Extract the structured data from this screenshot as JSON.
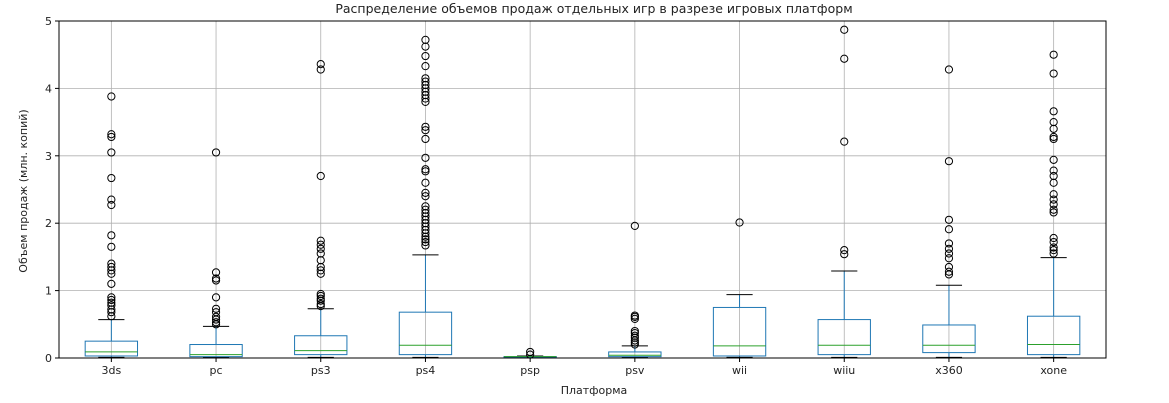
{
  "chart_data": {
    "type": "box",
    "title": "Распределение объемов продаж отдельных игр в разрезе игровых платформ",
    "xlabel": "Платформа",
    "ylabel": "Объем продаж (млн. копий)",
    "ylim": [
      0,
      5
    ],
    "yticks": [
      "0",
      "1",
      "2",
      "3",
      "4",
      "5"
    ],
    "grid": true,
    "colors": {
      "box": "#1f77b4",
      "median": "#2ca02c",
      "whisker": "#1f77b4",
      "cap": "#000000",
      "grid": "#b0b0b0",
      "flier": "#000000"
    },
    "categories": [
      "3ds",
      "pc",
      "ps3",
      "ps4",
      "psp",
      "psv",
      "wii",
      "wiiu",
      "x360",
      "xone"
    ],
    "boxes": [
      {
        "name": "3ds",
        "whislo": 0.01,
        "q1": 0.03,
        "med": 0.09,
        "q3": 0.25,
        "whishi": 0.57,
        "fliers": [
          0.62,
          0.68,
          0.72,
          0.78,
          0.82,
          0.86,
          0.9,
          1.1,
          1.25,
          1.3,
          1.35,
          1.4,
          1.65,
          1.82,
          2.27,
          2.35,
          2.67,
          3.05,
          3.28,
          3.32,
          3.88
        ]
      },
      {
        "name": "pc",
        "whislo": 0.01,
        "q1": 0.02,
        "med": 0.05,
        "q3": 0.2,
        "whishi": 0.47,
        "fliers": [
          0.5,
          0.53,
          0.57,
          0.61,
          0.68,
          0.73,
          0.9,
          1.15,
          1.18,
          1.27,
          3.05
        ]
      },
      {
        "name": "ps3",
        "whislo": 0.01,
        "q1": 0.05,
        "med": 0.11,
        "q3": 0.33,
        "whishi": 0.73,
        "fliers": [
          0.77,
          0.8,
          0.85,
          0.88,
          0.92,
          0.95,
          1.25,
          1.3,
          1.35,
          1.45,
          1.55,
          1.62,
          1.68,
          1.74,
          2.7,
          4.28,
          4.36
        ]
      },
      {
        "name": "ps4",
        "whislo": 0.01,
        "q1": 0.05,
        "med": 0.19,
        "q3": 0.68,
        "whishi": 1.53,
        "fliers": [
          1.67,
          1.72,
          1.76,
          1.8,
          1.85,
          1.9,
          1.95,
          2.0,
          2.05,
          2.1,
          2.15,
          2.2,
          2.25,
          2.4,
          2.45,
          2.6,
          2.77,
          2.8,
          2.97,
          3.25,
          3.38,
          3.43,
          3.8,
          3.85,
          3.9,
          3.95,
          4.0,
          4.05,
          4.1,
          4.15,
          4.33,
          4.48,
          4.62,
          4.72
        ]
      },
      {
        "name": "psp",
        "whislo": 0.01,
        "q1": 0.01,
        "med": 0.02,
        "q3": 0.02,
        "whishi": 0.03,
        "fliers": [
          0.05,
          0.09
        ]
      },
      {
        "name": "psv",
        "whislo": 0.01,
        "q1": 0.02,
        "med": 0.04,
        "q3": 0.09,
        "whishi": 0.18,
        "fliers": [
          0.2,
          0.23,
          0.26,
          0.3,
          0.33,
          0.37,
          0.4,
          0.58,
          0.61,
          0.63,
          1.96
        ]
      },
      {
        "name": "wii",
        "whislo": 0.01,
        "q1": 0.03,
        "med": 0.18,
        "q3": 0.75,
        "whishi": 0.94,
        "fliers": [
          2.01
        ]
      },
      {
        "name": "wiiu",
        "whislo": 0.01,
        "q1": 0.05,
        "med": 0.19,
        "q3": 0.57,
        "whishi": 1.29,
        "fliers": [
          1.54,
          1.6,
          3.21,
          4.44,
          4.87
        ]
      },
      {
        "name": "x360",
        "whislo": 0.01,
        "q1": 0.08,
        "med": 0.19,
        "q3": 0.49,
        "whishi": 1.08,
        "fliers": [
          1.24,
          1.28,
          1.35,
          1.48,
          1.55,
          1.62,
          1.7,
          1.91,
          2.05,
          2.92,
          4.28
        ]
      },
      {
        "name": "xone",
        "whislo": 0.01,
        "q1": 0.05,
        "med": 0.2,
        "q3": 0.62,
        "whishi": 1.49,
        "fliers": [
          1.55,
          1.6,
          1.64,
          1.72,
          1.78,
          2.16,
          2.2,
          2.28,
          2.35,
          2.43,
          2.6,
          2.7,
          2.78,
          2.94,
          3.25,
          3.28,
          3.4,
          3.5,
          3.66,
          4.22,
          4.5
        ]
      }
    ]
  }
}
